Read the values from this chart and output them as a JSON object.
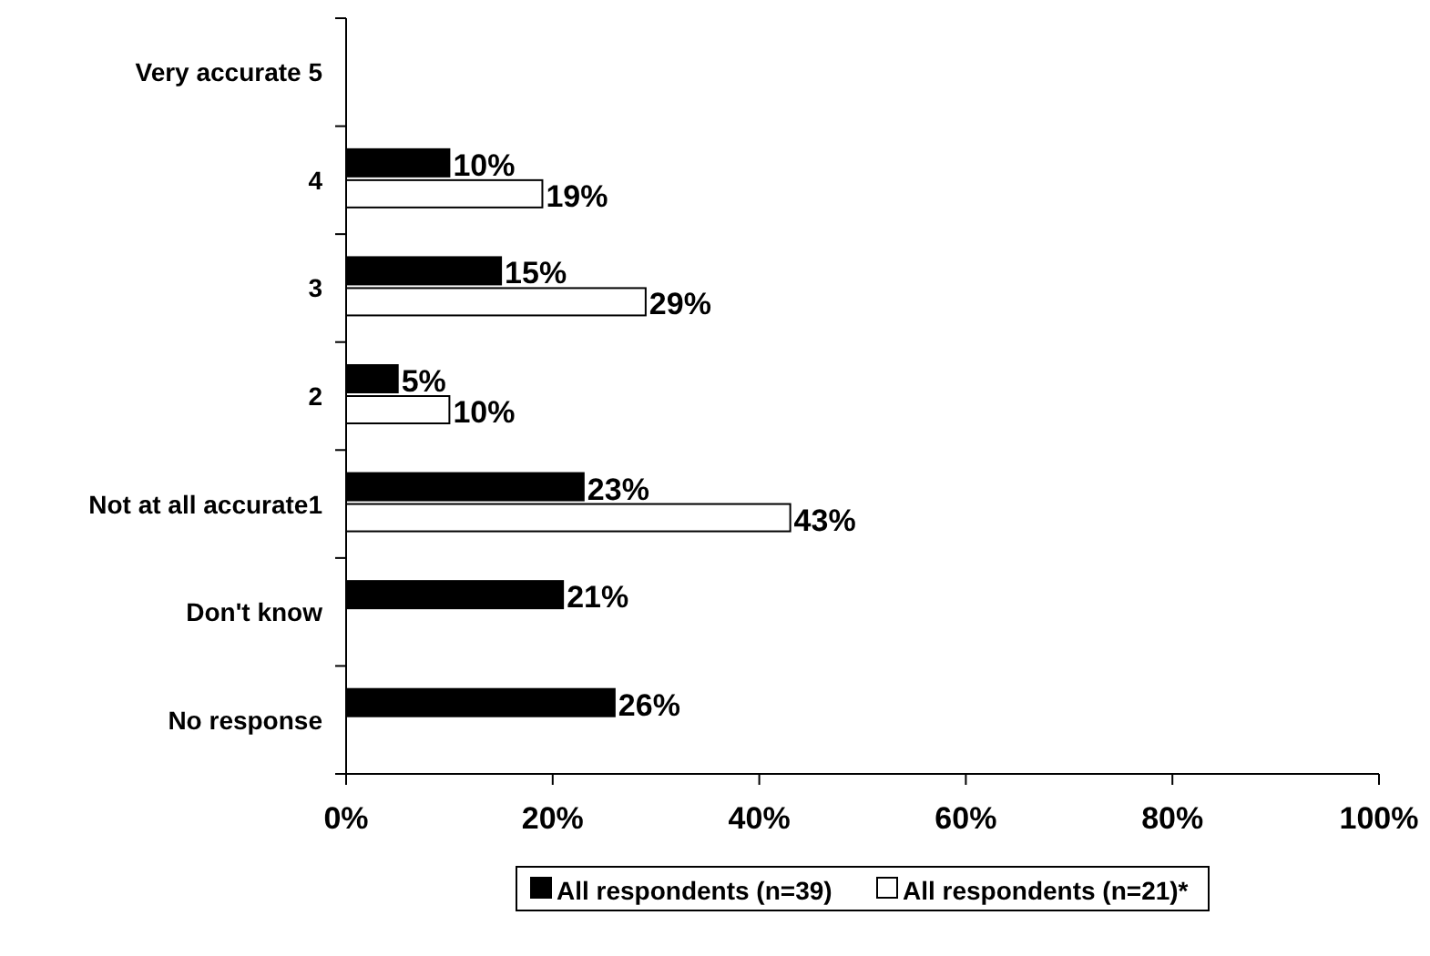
{
  "chart_data": {
    "type": "bar",
    "orientation": "horizontal",
    "categories": [
      "Very accurate 5",
      "4",
      "3",
      "2",
      "Not at all accurate1",
      "Don't know",
      "No response"
    ],
    "series": [
      {
        "name": "All respondents (n=39)",
        "color": "#000000",
        "values": [
          null,
          10,
          15,
          5,
          23,
          21,
          26
        ],
        "value_labels": [
          null,
          "10%",
          "15%",
          "5%",
          "23%",
          "21%",
          "26%"
        ]
      },
      {
        "name": "All respondents (n=21)*",
        "color": "#ffffff",
        "values": [
          null,
          19,
          29,
          10,
          43,
          null,
          null
        ],
        "value_labels": [
          null,
          "19%",
          "29%",
          "10%",
          "43%",
          null,
          null
        ]
      }
    ],
    "xlim": [
      0,
      100
    ],
    "xticks": [
      {
        "value": 0,
        "label": "0%"
      },
      {
        "value": 20,
        "label": "20%"
      },
      {
        "value": 40,
        "label": "40%"
      },
      {
        "value": 60,
        "label": "60%"
      },
      {
        "value": 80,
        "label": "80%"
      },
      {
        "value": 100,
        "label": "100%"
      }
    ],
    "legend": "bottom"
  }
}
